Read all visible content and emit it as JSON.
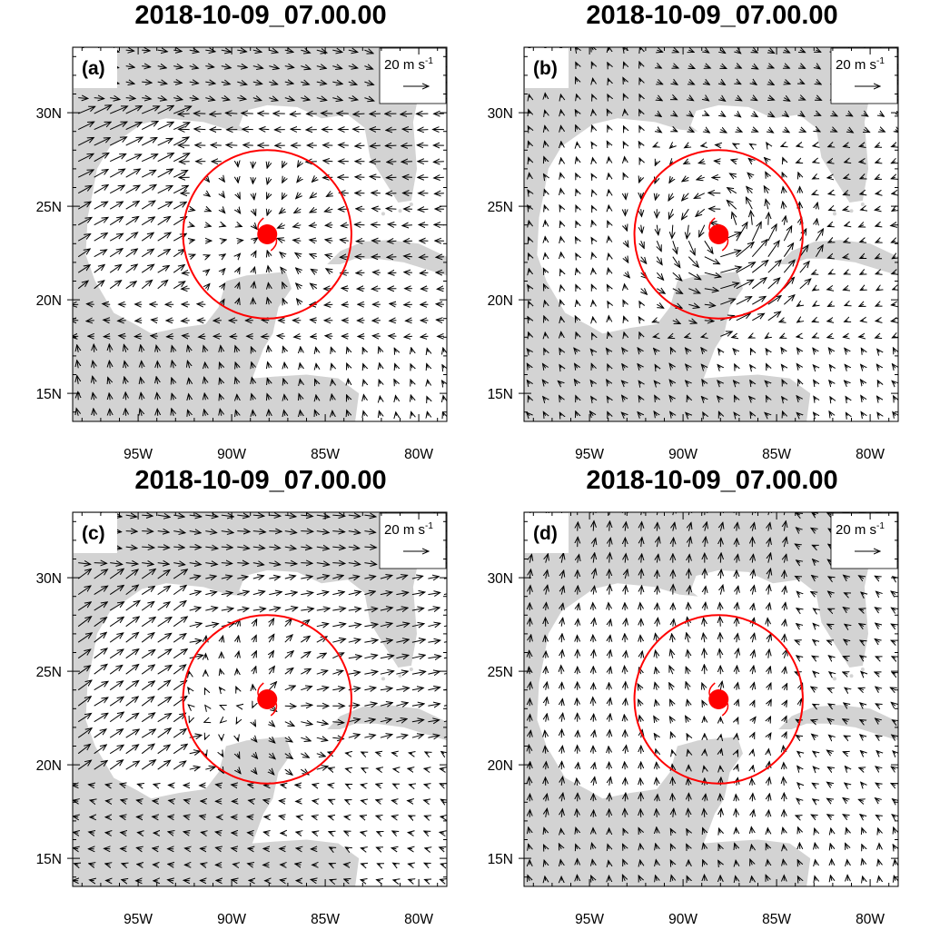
{
  "figure": {
    "panels": [
      {
        "id": "a",
        "title": "2018-10-09_07.00.00",
        "label": "(a)",
        "pattern": "a"
      },
      {
        "id": "b",
        "title": "2018-10-09_07.00.00",
        "label": "(b)",
        "pattern": "b"
      },
      {
        "id": "c",
        "title": "2018-10-09_07.00.00",
        "label": "(c)",
        "pattern": "c"
      },
      {
        "id": "d",
        "title": "2018-10-09_07.00.00",
        "label": "(d)",
        "pattern": "d"
      }
    ],
    "reference_vector": {
      "value": "20",
      "unit": "m s",
      "exponent": "-1"
    },
    "lat_ticks": [
      "30N",
      "25N",
      "20N",
      "15N"
    ],
    "lon_ticks": [
      "95W",
      "90W",
      "85W",
      "80W"
    ],
    "colors": {
      "land": "#d3d3d3",
      "ocean": "#ffffff",
      "marker": "#ff0000",
      "arrow": "#000000"
    }
  },
  "chart_data": {
    "type": "wind vector map",
    "time": "2018-10-09_07.00.00",
    "lon_range": [
      -98.5,
      -78.5
    ],
    "lat_range": [
      13.5,
      33.5
    ],
    "storm_center": {
      "lon": -88.1,
      "lat": 23.5
    },
    "circle_radius_deg": 4.5,
    "reference_vector_speed_ms": 20
  }
}
